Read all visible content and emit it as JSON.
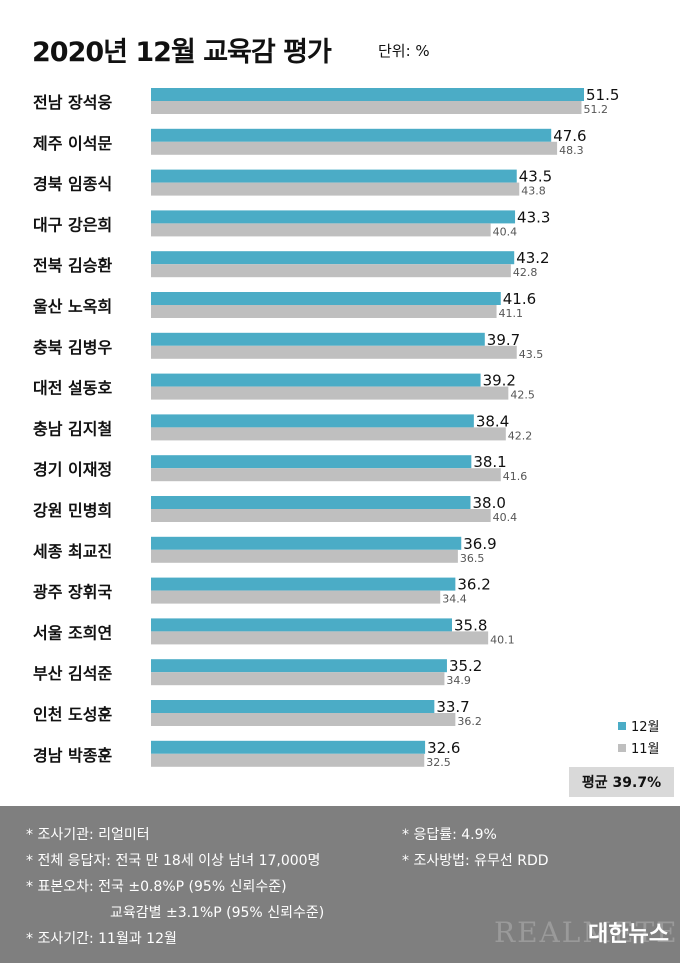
{
  "title": "2020년 12월 교육감 평가",
  "unit": "단위: %",
  "chart_data": {
    "type": "bar",
    "orientation": "horizontal",
    "categories": [
      "전남 장석웅",
      "제주 이석문",
      "경북 임종식",
      "대구 강은희",
      "전북 김승환",
      "울산 노옥희",
      "충북 김병우",
      "대전 설동호",
      "충남 김지철",
      "경기 이재정",
      "강원 민병희",
      "세종 최교진",
      "광주 장휘국",
      "서울 조희연",
      "부산 김석준",
      "인천 도성훈",
      "경남 박종훈"
    ],
    "series": [
      {
        "name": "12월",
        "color": "#4bacc6",
        "values": [
          51.5,
          47.6,
          43.5,
          43.3,
          43.2,
          41.6,
          39.7,
          39.2,
          38.4,
          38.1,
          38.0,
          36.9,
          36.2,
          35.8,
          35.2,
          33.7,
          32.6
        ]
      },
      {
        "name": "11월",
        "color": "#bfbfbf",
        "values": [
          51.2,
          48.3,
          43.8,
          40.4,
          42.8,
          41.1,
          43.5,
          42.5,
          42.2,
          41.6,
          40.4,
          36.5,
          34.4,
          40.1,
          34.9,
          36.2,
          32.5
        ]
      }
    ],
    "value_labels": {
      "12월": [
        "51.5",
        "47.6",
        "43.5",
        "43.3",
        "43.2",
        "41.6",
        "39.7",
        "39.2",
        "38.4",
        "38.1",
        "38.0",
        "36.9",
        "36.2",
        "35.8",
        "35.2",
        "33.7",
        "32.6"
      ],
      "11월": [
        "51.2",
        "48.3",
        "43.8",
        "40.4",
        "42.8",
        "41.1",
        "43.5",
        "42.5",
        "42.2",
        "41.6",
        "40.4",
        "36.5",
        "34.4",
        "40.1",
        "34.9",
        "36.2",
        "32.5"
      ]
    },
    "xlim": [
      0,
      51.5
    ],
    "grid": false,
    "legend_position": "bottom-right"
  },
  "average": "평균 39.7%",
  "notes": {
    "agency": "* 조사기관: 리얼미터",
    "response_rate": "* 응답률: 4.9%",
    "respondents": "* 전체 응답자: 전국 만 18세 이상 남녀 17,000명",
    "method": "* 조사방법: 유무선 RDD",
    "error1": "* 표본오차: 전국 ±0.8%P (95% 신뢰수준)",
    "error2": "교육감별 ±3.1%P (95% 신뢰수준)",
    "period": "* 조사기간: 11월과 12월"
  },
  "brand": {
    "watermark": "REALMETER",
    "logo": "대한뉴스"
  }
}
